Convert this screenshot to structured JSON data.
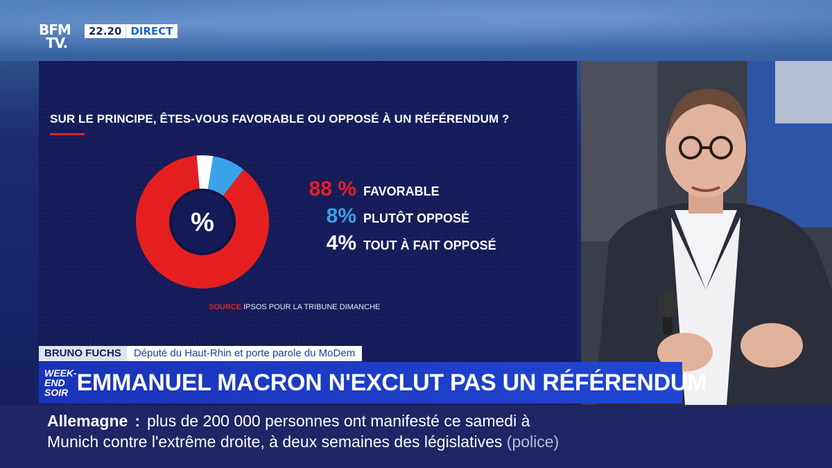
{
  "broadcast": {
    "logo_line1": "BFM",
    "logo_line2": "TV.",
    "time": "22.20",
    "live_label": "DIRECT"
  },
  "chart_data": {
    "type": "pie",
    "title": "SUR LE PRINCIPE, ÊTES-VOUS FAVORABLE OU OPPOSÉ À UN RÉFÉRENDUM ?",
    "center_label": "%",
    "slices": [
      {
        "label": "FAVORABLE",
        "value": 88,
        "display": "88 %",
        "color": "#e51f1f"
      },
      {
        "label": "PLUTÔT OPPOSÉ",
        "value": 8,
        "display": "8%",
        "color": "#3aa3e8"
      },
      {
        "label": "TOUT À FAIT OPPOSÉ",
        "value": 4,
        "display": "4%",
        "color": "#ffffff"
      }
    ],
    "source_label": "SOURCE",
    "source_text": "IPSOS POUR LA TRIBUNE DIMANCHE"
  },
  "lower_third": {
    "name": "BRUNO FUCHS",
    "role": "Député du Haut-Rhin et porte parole du MoDem",
    "show_line1": "WEEK-END",
    "show_line2": "SOIR",
    "headline": "EMMANUEL MACRON N'EXCLUT PAS UN RÉFÉRENDUM"
  },
  "ticker": {
    "topic": "Allemagne",
    "separator": ":",
    "line1": "plus de 200 000 personnes ont manifesté ce samedi à",
    "line2": "Munich contre l'extrême droite, à deux semaines des législatives",
    "credit": "(police)"
  },
  "colors": {
    "accent_red": "#e32222",
    "accent_blue": "#3aa3e8",
    "panel_bg": "#161c5a"
  }
}
